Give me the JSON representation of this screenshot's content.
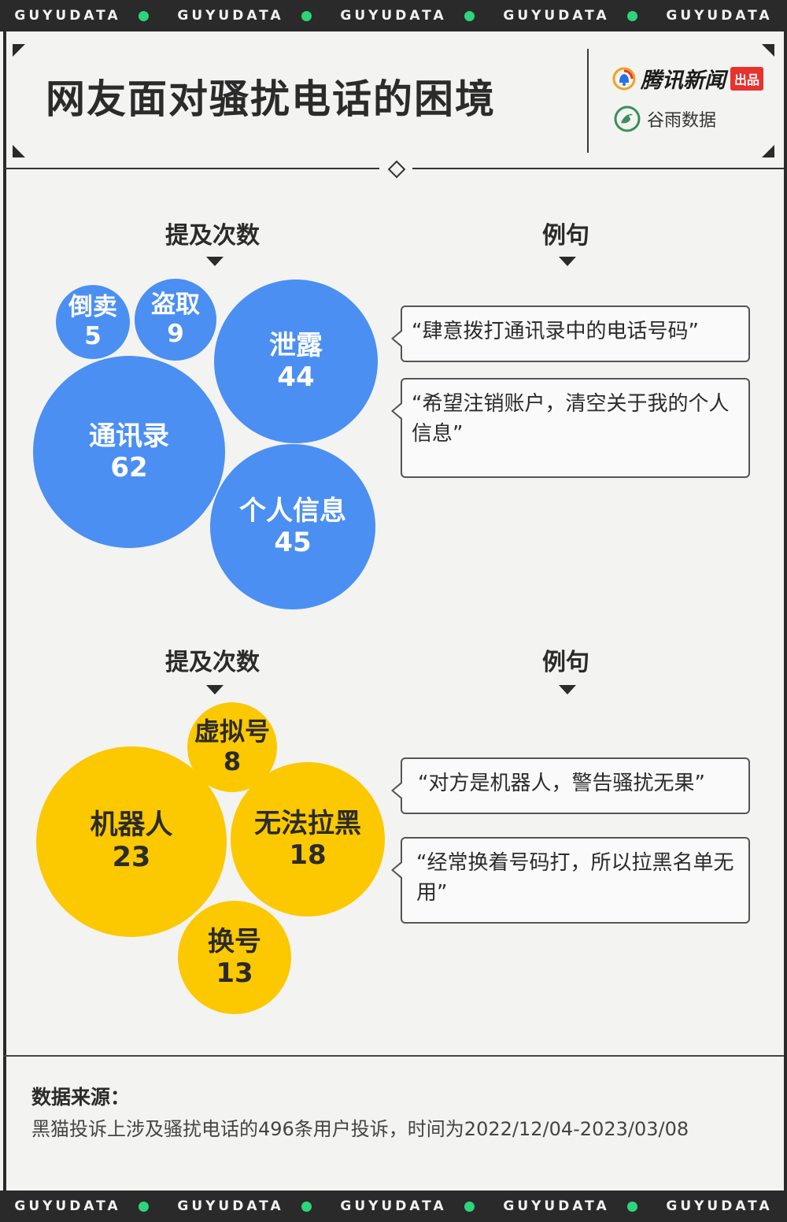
{
  "brand_band": {
    "items": [
      "GUYUDATA",
      "GUYUDATA",
      "GUYUDATA",
      "GUYUDATA",
      "GUYUDATA"
    ]
  },
  "header": {
    "title": "网友面对骚扰电话的困境",
    "logo_primary": "腾讯新闻",
    "logo_primary_badge": "出品",
    "logo_secondary": "谷雨数据"
  },
  "section_headers": {
    "count": "提及次数",
    "examples": "例句"
  },
  "colors": {
    "band": "#2a2a2a",
    "band_dot": "#2ed47a",
    "blue": "#4b8ff2",
    "yellow": "#fcc800",
    "tencent_badge": "#e8322d"
  },
  "chart_data": [
    {
      "type": "bubble",
      "categories": [
        "倒卖",
        "盗取",
        "泄露",
        "通讯录",
        "个人信息"
      ],
      "values": [
        5,
        9,
        44,
        62,
        45
      ],
      "color": "#4b8ff2",
      "quotes": [
        "“肆意拨打通讯录中的电话号码”",
        "“希望注销账户，清空关于我的个人信息”"
      ]
    },
    {
      "type": "bubble",
      "categories": [
        "虚拟号",
        "机器人",
        "无法拉黑",
        "换号"
      ],
      "values": [
        8,
        23,
        18,
        13
      ],
      "color": "#fcc800",
      "quotes": [
        "“对方是机器人，警告骚扰无果”",
        "“经常换着号码打，所以拉黑名单无用”"
      ]
    }
  ],
  "footer": {
    "source_label": "数据来源：",
    "source_text": "黑猫投诉上涉及骚扰电话的496条用户投诉，时间为2022/12/04-2023/03/08"
  }
}
